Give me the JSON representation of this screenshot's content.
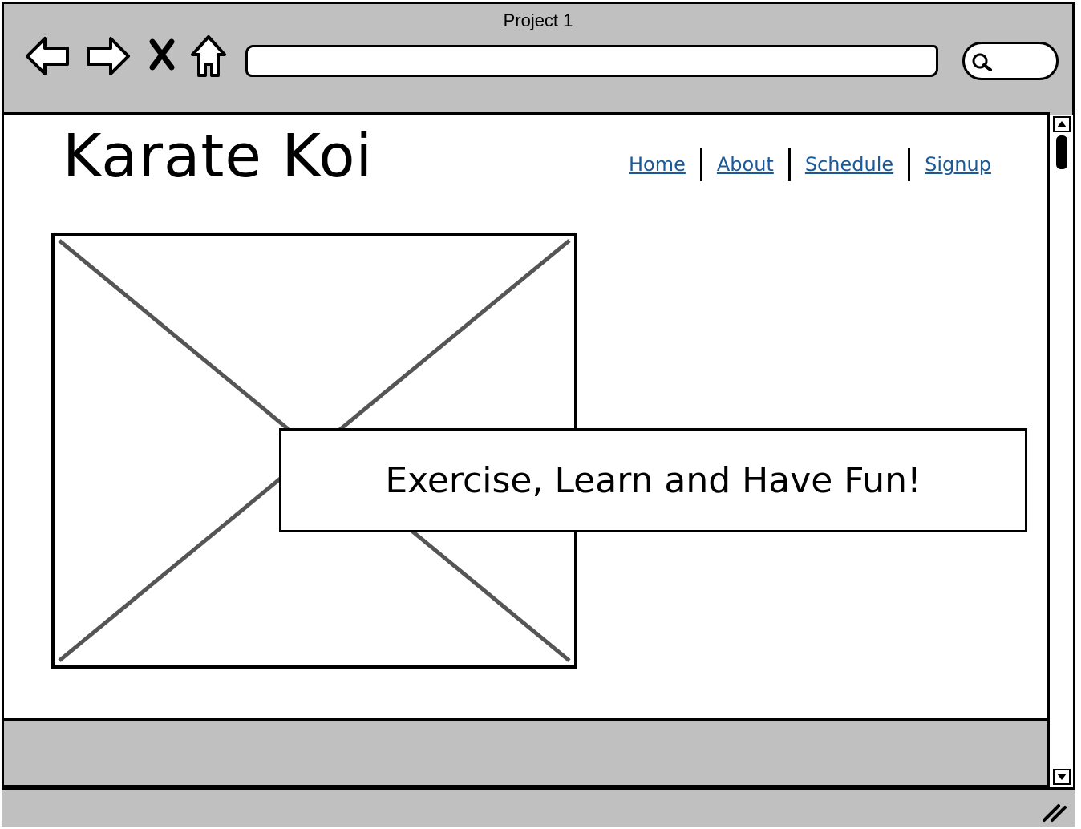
{
  "window": {
    "title": "Project 1"
  },
  "toolbar": {
    "back_icon": "back-arrow-icon",
    "forward_icon": "forward-arrow-icon",
    "stop_icon": "close-x-icon",
    "home_icon": "home-icon",
    "address_value": "",
    "search_icon": "search-icon"
  },
  "site": {
    "title": "Karate Koi",
    "nav": [
      {
        "label": "Home"
      },
      {
        "label": "About"
      },
      {
        "label": "Schedule"
      },
      {
        "label": "Signup"
      }
    ],
    "link_color": "#1a5a9a"
  },
  "hero": {
    "image": "image-placeholder",
    "banner_text": "Exercise, Learn and Have Fun!"
  },
  "colors": {
    "chrome": "#c0c0c0",
    "page": "#ffffff",
    "stroke": "#000000",
    "placeholder_x": "#555555"
  }
}
